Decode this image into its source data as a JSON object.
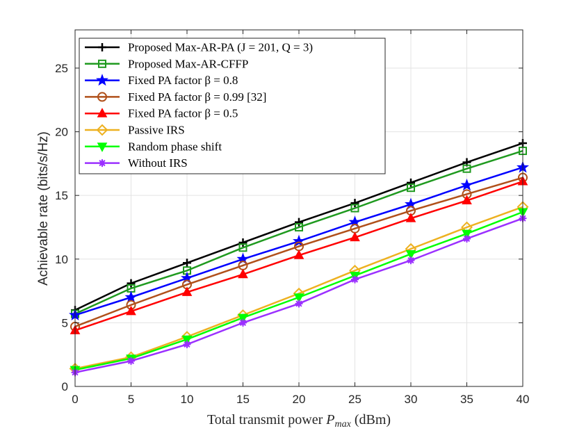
{
  "chart_data": {
    "type": "line",
    "title": "",
    "xlabel": "Total transmit power P_max (dBm)",
    "ylabel": "Achievable rate (bits/s/Hz)",
    "xlim": [
      0,
      40
    ],
    "ylim": [
      0,
      28
    ],
    "xticks": [
      0,
      5,
      10,
      15,
      20,
      25,
      30,
      35,
      40
    ],
    "yticks": [
      0,
      5,
      10,
      15,
      20,
      25
    ],
    "grid": true,
    "legend_position": "top-left",
    "x": [
      0,
      5,
      10,
      15,
      20,
      25,
      30,
      35,
      40
    ],
    "series": [
      {
        "name": "Proposed Max-AR-PA (J = 201, Q = 3)",
        "color": "#000000",
        "marker": "plus",
        "values": [
          6.0,
          8.1,
          9.7,
          11.3,
          12.9,
          14.4,
          16.0,
          17.6,
          19.1
        ]
      },
      {
        "name": "Proposed Max-AR-CFFP",
        "color": "#1f9a1f",
        "marker": "square",
        "values": [
          5.7,
          7.7,
          9.1,
          10.9,
          12.5,
          14.0,
          15.6,
          17.1,
          18.5
        ]
      },
      {
        "name": "Fixed PA factor β = 0.8",
        "color": "#0000ff",
        "marker": "star",
        "values": [
          5.6,
          7.0,
          8.5,
          10.0,
          11.4,
          12.9,
          14.3,
          15.8,
          17.2
        ]
      },
      {
        "name": "Fixed PA factor β = 0.99 [32]",
        "color": "#b0501a",
        "marker": "circle",
        "values": [
          4.7,
          6.4,
          8.0,
          9.5,
          11.0,
          12.4,
          13.8,
          15.1,
          16.4
        ]
      },
      {
        "name": "Fixed PA factor β = 0.5",
        "color": "#ff0000",
        "marker": "triangle-up",
        "values": [
          4.4,
          5.9,
          7.4,
          8.8,
          10.3,
          11.7,
          13.2,
          14.6,
          16.1
        ]
      },
      {
        "name": "Passive IRS",
        "color": "#edb120",
        "marker": "diamond",
        "values": [
          1.4,
          2.3,
          3.9,
          5.6,
          7.3,
          9.1,
          10.8,
          12.5,
          14.1
        ]
      },
      {
        "name": "Random phase shift",
        "color": "#00ff00",
        "marker": "triangle-down",
        "values": [
          1.3,
          2.2,
          3.7,
          5.4,
          7.0,
          8.7,
          10.4,
          12.0,
          13.7
        ]
      },
      {
        "name": "Without IRS",
        "color": "#9b30ff",
        "marker": "asterisk",
        "values": [
          1.1,
          2.0,
          3.3,
          5.0,
          6.5,
          8.4,
          9.9,
          11.6,
          13.2
        ]
      }
    ]
  }
}
